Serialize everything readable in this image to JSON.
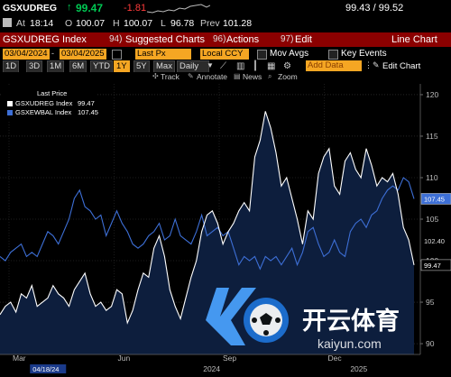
{
  "header": {
    "ticker": "GSXUDREG",
    "arrow": "↑",
    "last": "99.47",
    "change": "-1.81",
    "bid_ask": "99.43 / 99.52",
    "at_label": "At",
    "time": "18:14",
    "open_label": "O",
    "open": "100.07",
    "high_label": "H",
    "high": "100.07",
    "low_label": "L",
    "low": "96.78",
    "prev_label": "Prev",
    "prev": "101.28"
  },
  "menu": {
    "security": "GSXUDREG Index",
    "suggested_num": "94)",
    "suggested": "Suggested Charts",
    "actions_num": "96)",
    "actions": "Actions",
    "edit_num": "97)",
    "edit": "Edit",
    "view": "Line Chart"
  },
  "controls": {
    "start_date": "03/04/2024",
    "end_date": "03/04/2025",
    "field": "Last Px",
    "currency": "Local CCY",
    "mov_avgs": "Mov Avgs",
    "key_events": "Key Events"
  },
  "periods": [
    "1D",
    "3D",
    "1M",
    "6M",
    "YTD",
    "1Y",
    "5Y",
    "Max"
  ],
  "active_period": "1Y",
  "frequency": "Daily",
  "add_data": "Add Data",
  "edit_chart": "Edit Chart",
  "toolbar": [
    "Track",
    "Annotate",
    "News",
    "Zoom"
  ],
  "colors": {
    "series1": "#ffffff",
    "series2": "#3d6fd6",
    "area": "#0d1e3d",
    "menu_bar": "#8b0000",
    "accent": "#f5a623",
    "up": "#00c853",
    "down": "#ff3b3b"
  },
  "chart_data": {
    "type": "line",
    "legend_title": "Last Price",
    "series": [
      {
        "name": "GSXUDREG Index",
        "last_label": "99.47",
        "color": "#ffffff",
        "values": [
          93.5,
          94.5,
          95.0,
          93.8,
          96.0,
          95.5,
          97.0,
          94.5,
          95.0,
          95.5,
          97.0,
          96.0,
          95.5,
          94.5,
          96.5,
          97.5,
          98.5,
          96.0,
          94.5,
          95.0,
          94.0,
          94.5,
          96.5,
          96.0,
          92.5,
          94.0,
          96.5,
          98.5,
          98.0,
          101.5,
          103.0,
          100.5,
          96.5,
          94.5,
          93.0,
          95.5,
          98.0,
          100.0,
          103.5,
          105.5,
          106.0,
          104.5,
          102.0,
          103.5,
          104.5,
          106.0,
          107.0,
          106.0,
          112.5,
          114.5,
          118.0,
          116.0,
          113.0,
          109.0,
          110.0,
          107.5,
          105.0,
          102.0,
          106.0,
          105.0,
          110.5,
          112.5,
          113.5,
          109.0,
          108.0,
          112.0,
          113.0,
          111.0,
          110.0,
          113.5,
          111.5,
          109.0,
          110.0,
          109.5,
          110.5,
          108.0,
          104.0,
          102.5,
          99.47
        ]
      },
      {
        "name": "GSXEWBAL Index",
        "last_label": "107.45",
        "color": "#3d6fd6",
        "values": [
          100.5,
          100.0,
          101.0,
          101.5,
          102.0,
          100.5,
          101.0,
          100.5,
          102.0,
          103.5,
          103.0,
          102.0,
          103.5,
          105.0,
          107.5,
          108.5,
          106.5,
          106.0,
          105.0,
          105.5,
          103.0,
          104.5,
          106.0,
          104.5,
          103.5,
          102.0,
          101.5,
          102.0,
          103.0,
          103.5,
          104.5,
          102.5,
          103.0,
          105.0,
          103.0,
          102.5,
          102.0,
          103.5,
          105.5,
          103.0,
          103.5,
          104.0,
          103.0,
          103.5,
          101.5,
          99.5,
          100.5,
          100.0,
          100.5,
          99.0,
          100.5,
          100.0,
          100.5,
          99.5,
          100.5,
          101.5,
          99.5,
          101.0,
          103.5,
          104.0,
          102.0,
          100.5,
          101.0,
          102.5,
          101.0,
          100.5,
          103.5,
          104.5,
          105.0,
          104.0,
          105.5,
          106.0,
          107.5,
          108.5,
          109.0,
          108.5,
          110.0,
          109.5,
          107.45
        ]
      }
    ],
    "x_tick_labels": [
      "Mar",
      "Jun",
      "Sep",
      "Dec"
    ],
    "x_tick_positions": [
      0.0,
      3.0,
      6.0,
      9.0
    ],
    "x_range": [
      0.0,
      12.0
    ],
    "year_labels": [
      "2024",
      "2025"
    ],
    "year_positions": [
      5.8,
      10.0
    ],
    "start_flag": "04/18/24",
    "start_flag_position": 1.5,
    "y_ticks": [
      90,
      95,
      100,
      105,
      110,
      115,
      120
    ],
    "ylim": [
      88.7,
      121.3
    ],
    "grid": true,
    "legend_position": "top-left"
  },
  "watermark": {
    "text": "开云体育",
    "url": "kaiyun.com"
  }
}
